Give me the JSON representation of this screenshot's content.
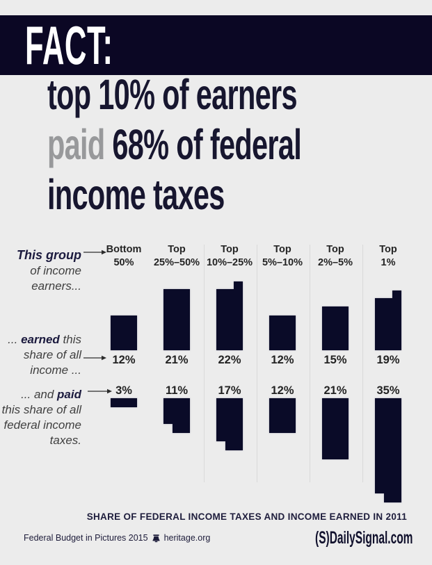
{
  "header": {
    "fact": "FACT:"
  },
  "headline": {
    "line1": "top 10% of earners",
    "line2_gray": "paid",
    "line2_rest": " 68% of federal",
    "line3": "income taxes"
  },
  "left_labels": {
    "group_bold": "This group",
    "group_line2": "of income",
    "group_line3": "earners...",
    "earned_prefix": "... ",
    "earned_bold": "earned",
    "earned_suffix": " this",
    "earned_line2": "share of all",
    "earned_line3": "income ...",
    "paid_prefix": "... and ",
    "paid_bold": "paid",
    "paid_line2": "this share of all",
    "paid_line3": "federal income",
    "paid_line4": "taxes."
  },
  "chart_data": {
    "type": "bar",
    "title": "SHARE OF FEDERAL INCOME TAXES AND INCOME EARNED IN 2011",
    "unit": "%",
    "categories": [
      "Bottom 50%",
      "Top 25%–50%",
      "Top 10%–25%",
      "Top 5%–10%",
      "Top 2%–5%",
      "Top 1%"
    ],
    "series": [
      {
        "name": "earned this share of all income",
        "values": [
          12,
          21,
          22,
          12,
          15,
          19
        ]
      },
      {
        "name": "paid this share of all federal income taxes",
        "values": [
          3,
          11,
          17,
          12,
          21,
          35
        ]
      }
    ],
    "groups": [
      {
        "label1": "Bottom",
        "label2": "50%",
        "earned": 12,
        "paid": 3,
        "earned_step": false,
        "paid_step": false
      },
      {
        "label1": "Top",
        "label2": "25%–50%",
        "earned": 21,
        "paid": 11,
        "earned_step": false,
        "paid_step": true
      },
      {
        "label1": "Top",
        "label2": "10%–25%",
        "earned": 22,
        "paid": 17,
        "earned_step": true,
        "paid_step": true
      },
      {
        "label1": "Top",
        "label2": "5%–10%",
        "earned": 12,
        "paid": 12,
        "earned_step": false,
        "paid_step": false
      },
      {
        "label1": "Top",
        "label2": "2%–5%",
        "earned": 15,
        "paid": 21,
        "earned_step": false,
        "paid_step": false
      },
      {
        "label1": "Top",
        "label2": "1%",
        "earned": 19,
        "paid": 35,
        "earned_step": true,
        "paid_step": true
      }
    ],
    "colors": {
      "bar": "#0a0b28",
      "banner": "#0b0724",
      "headline_navy": "#17162f",
      "paid_gray": "#98999b",
      "background": "#ececec"
    },
    "legend_position": "left-row-labels",
    "grid": false
  },
  "footer": {
    "left_text": "Federal Budget in Pictures 2015",
    "left_link": "heritage.org",
    "brand_paren_s": "(S)",
    "brand_name": "DailySignal.com"
  }
}
